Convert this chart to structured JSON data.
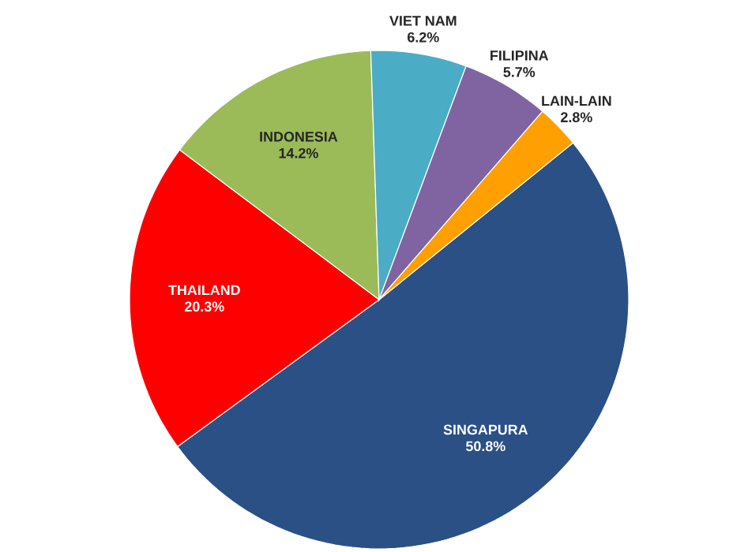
{
  "chart_data": {
    "type": "pie",
    "categories": [
      "SINGAPURA",
      "THAILAND",
      "INDONESIA",
      "VIET NAM",
      "FILIPINA",
      "LAIN-LAIN"
    ],
    "values": [
      50.8,
      20.3,
      14.2,
      6.2,
      5.7,
      2.8
    ],
    "colors": [
      "#2a5085",
      "#ff0000",
      "#9bbb59",
      "#4bacc6",
      "#8064a2",
      "#ff9f00"
    ],
    "value_labels": [
      "50.8%",
      "20.3%",
      "14.2%",
      "6.2%",
      "5.7%",
      "2.8%"
    ]
  }
}
